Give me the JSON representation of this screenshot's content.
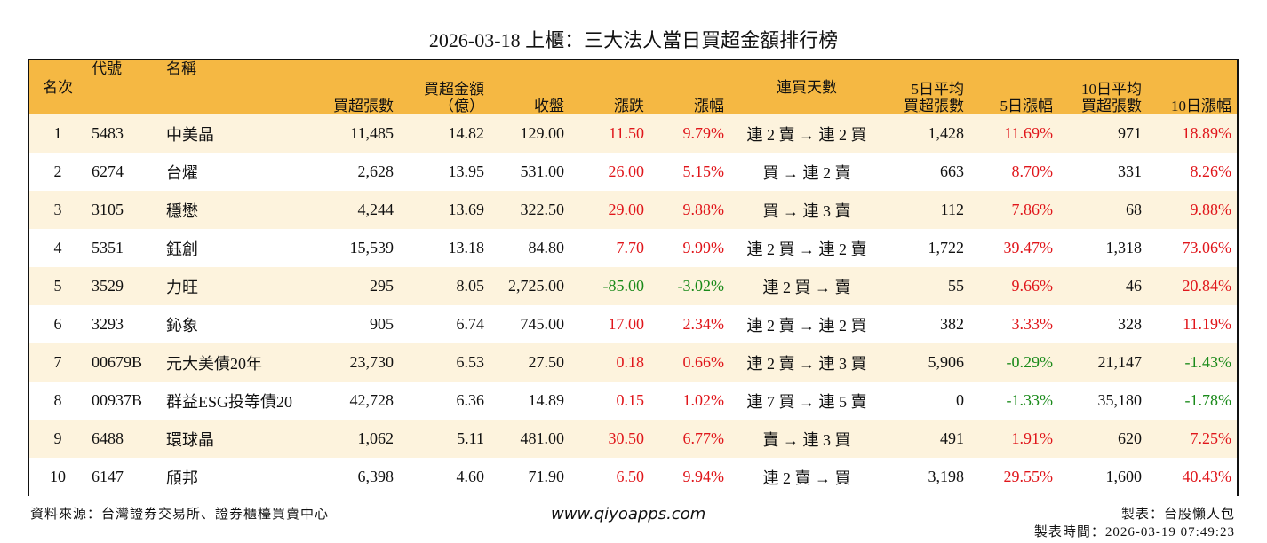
{
  "header": {
    "title": "2026-03-18 上櫃：三大法人當日買超金額排行榜"
  },
  "table": {
    "headers": [
      [
        "名次"
      ],
      [
        "代號"
      ],
      [
        "名稱"
      ],
      [
        "買超張數"
      ],
      [
        "買超金額",
        "（億）"
      ],
      [
        "收盤"
      ],
      [
        "漲跌"
      ],
      [
        "漲幅"
      ],
      [
        "連買天數"
      ],
      [
        "5日平均",
        "買超張數"
      ],
      [
        "5日漲幅"
      ],
      [
        "10日平均",
        "買超張數"
      ],
      [
        "10日漲幅"
      ]
    ],
    "rows": [
      [
        "1",
        "5483",
        "中美晶",
        "11,485",
        "14.82",
        "129.00",
        "11.50",
        "9.79%",
        "連 2 賣 → 連 2 買",
        "1,428",
        "11.69%",
        "971",
        "18.89%"
      ],
      [
        "2",
        "6274",
        "台燿",
        "2,628",
        "13.95",
        "531.00",
        "26.00",
        "5.15%",
        "買 → 連 2 賣",
        "663",
        "8.70%",
        "331",
        "8.26%"
      ],
      [
        "3",
        "3105",
        "穩懋",
        "4,244",
        "13.69",
        "322.50",
        "29.00",
        "9.88%",
        "買 → 連 3 賣",
        "112",
        "7.86%",
        "68",
        "9.88%"
      ],
      [
        "4",
        "5351",
        "鈺創",
        "15,539",
        "13.18",
        "84.80",
        "7.70",
        "9.99%",
        "連 2 買 → 連 2 賣",
        "1,722",
        "39.47%",
        "1,318",
        "73.06%"
      ],
      [
        "5",
        "3529",
        "力旺",
        "295",
        "8.05",
        "2,725.00",
        "-85.00",
        "-3.02%",
        "連 2 買 → 賣",
        "55",
        "9.66%",
        "46",
        "20.84%"
      ],
      [
        "6",
        "3293",
        "鈊象",
        "905",
        "6.74",
        "745.00",
        "17.00",
        "2.34%",
        "連 2 賣 → 連 2 買",
        "382",
        "3.33%",
        "328",
        "11.19%"
      ],
      [
        "7",
        "00679B",
        "元大美債20年",
        "23,730",
        "6.53",
        "27.50",
        "0.18",
        "0.66%",
        "連 2 賣 → 連 3 買",
        "5,906",
        "-0.29%",
        "21,147",
        "-1.43%"
      ],
      [
        "8",
        "00937B",
        "群益ESG投等債20",
        "42,728",
        "6.36",
        "14.89",
        "0.15",
        "1.02%",
        "連 7 買 → 連 5 賣",
        "0",
        "-1.33%",
        "35,180",
        "-1.78%"
      ],
      [
        "9",
        "6488",
        "環球晶",
        "1,062",
        "5.11",
        "481.00",
        "30.50",
        "6.77%",
        "賣 → 連 3 買",
        "491",
        "1.91%",
        "620",
        "7.25%"
      ],
      [
        "10",
        "6147",
        "頎邦",
        "6,398",
        "4.60",
        "71.90",
        "6.50",
        "9.94%",
        "連 2 賣 → 買",
        "3,198",
        "29.55%",
        "1,600",
        "40.43%"
      ]
    ]
  },
  "footer": {
    "source": "資料來源：台灣證券交易所、證券櫃檯買賣中心",
    "site": "www.qiyoapps.com",
    "maker": "製表：台股懶人包",
    "time": "製表時間：2026-03-19 07:49:23"
  }
}
